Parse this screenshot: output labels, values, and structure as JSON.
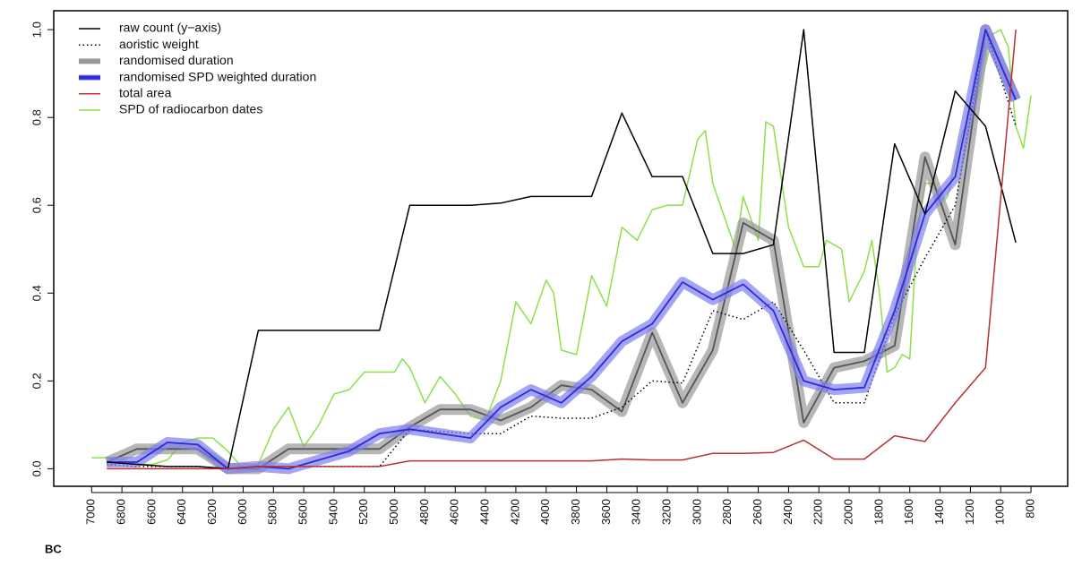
{
  "chart_data": {
    "type": "line",
    "xlabel": "BC",
    "xlim": [
      7250,
      558
    ],
    "ylim": [
      -0.04,
      1.043
    ],
    "xticks": [
      7000,
      6800,
      6600,
      6400,
      6200,
      6000,
      5800,
      5600,
      5400,
      5200,
      5000,
      4800,
      4600,
      4400,
      4200,
      4000,
      3800,
      3600,
      3400,
      3200,
      3000,
      2800,
      2600,
      2400,
      2200,
      2000,
      1800,
      1600,
      1400,
      1200,
      1000,
      800
    ],
    "yticks": [
      {
        "value": 0,
        "label": "0.0"
      },
      0.2,
      0.4,
      0.6,
      0.8,
      {
        "value": 1,
        "label": "1.0"
      }
    ],
    "legend": "top-left",
    "series": [
      {
        "name": "raw count (y−axis)",
        "color": "#000000",
        "x": [
          6900,
          6700,
          6500,
          6300,
          6100,
          5900,
          5700,
          5500,
          5300,
          5100,
          4900,
          4700,
          4500,
          4300,
          4100,
          3900,
          3700,
          3500,
          3300,
          3100,
          2900,
          2700,
          2500,
          2300,
          2100,
          1900,
          1700,
          1500,
          1300,
          1100,
          900
        ],
        "values": [
          0.015,
          0.01,
          0.005,
          0.005,
          0.0,
          0.315,
          0.315,
          0.315,
          0.315,
          0.315,
          0.6,
          0.6,
          0.6,
          0.605,
          0.62,
          0.62,
          0.62,
          0.81,
          0.665,
          0.665,
          0.49,
          0.49,
          0.51,
          1.0,
          0.265,
          0.265,
          0.74,
          0.58,
          0.86,
          0.78,
          0.515
        ]
      },
      {
        "name": "aoristic weight",
        "color": "#000000",
        "dash": "dotted",
        "x": [
          6900,
          6700,
          6500,
          6300,
          6100,
          5900,
          5700,
          5500,
          5300,
          5100,
          4900,
          4700,
          4500,
          4300,
          4100,
          3900,
          3700,
          3500,
          3300,
          3100,
          2900,
          2700,
          2500,
          2300,
          2100,
          1900,
          1700,
          1500,
          1300,
          1100,
          900
        ],
        "values": [
          0.01,
          0.005,
          0.005,
          0.005,
          0.0,
          0.005,
          0.005,
          0.005,
          0.005,
          0.005,
          0.09,
          0.085,
          0.08,
          0.08,
          0.12,
          0.115,
          0.115,
          0.14,
          0.2,
          0.195,
          0.36,
          0.34,
          0.38,
          0.27,
          0.15,
          0.15,
          0.35,
          0.48,
          0.6,
          1.0,
          0.78
        ]
      },
      {
        "name": "randomised duration",
        "color": "#555555",
        "band": "#999999",
        "x": [
          6900,
          6700,
          6500,
          6300,
          6100,
          5900,
          5700,
          5500,
          5300,
          5100,
          4900,
          4700,
          4500,
          4300,
          4100,
          3900,
          3700,
          3500,
          3300,
          3100,
          2900,
          2700,
          2500,
          2300,
          2100,
          1900,
          1700,
          1500,
          1300,
          1100,
          900
        ],
        "values": [
          0.015,
          0.045,
          0.045,
          0.045,
          0.0,
          0.0,
          0.045,
          0.045,
          0.045,
          0.045,
          0.095,
          0.135,
          0.135,
          0.11,
          0.14,
          0.19,
          0.18,
          0.13,
          0.31,
          0.15,
          0.27,
          0.56,
          0.52,
          0.105,
          0.23,
          0.245,
          0.28,
          0.71,
          0.51,
          1.0,
          0.84
        ]
      },
      {
        "name": "randomised SPD weighted duration",
        "color": "#2b2bd9",
        "band": "#7f7ff0",
        "x": [
          6900,
          6700,
          6500,
          6300,
          6100,
          5900,
          5700,
          5500,
          5300,
          5100,
          4900,
          4700,
          4500,
          4300,
          4100,
          3900,
          3700,
          3500,
          3300,
          3100,
          2900,
          2700,
          2500,
          2300,
          2100,
          1900,
          1700,
          1500,
          1300,
          1100,
          900
        ],
        "values": [
          0.015,
          0.015,
          0.06,
          0.055,
          0.0,
          0.005,
          0.0,
          0.02,
          0.04,
          0.08,
          0.09,
          0.08,
          0.07,
          0.14,
          0.18,
          0.15,
          0.21,
          0.29,
          0.33,
          0.425,
          0.385,
          0.42,
          0.36,
          0.2,
          0.18,
          0.185,
          0.36,
          0.58,
          0.665,
          1.0,
          0.84
        ]
      },
      {
        "name": "total area",
        "color": "#b8312f",
        "x": [
          6900,
          6700,
          6500,
          6300,
          6100,
          5900,
          5700,
          5500,
          5300,
          5100,
          4900,
          4700,
          4500,
          4300,
          4100,
          3900,
          3700,
          3500,
          3300,
          3100,
          2900,
          2700,
          2500,
          2300,
          2100,
          1900,
          1700,
          1500,
          1300,
          1100,
          900
        ],
        "values": [
          0.0,
          0.0,
          0.0,
          0.0,
          0.0,
          0.005,
          0.005,
          0.005,
          0.005,
          0.005,
          0.018,
          0.018,
          0.018,
          0.018,
          0.018,
          0.018,
          0.018,
          0.022,
          0.02,
          0.02,
          0.035,
          0.035,
          0.037,
          0.065,
          0.022,
          0.022,
          0.075,
          0.062,
          0.15,
          0.23,
          1.0
        ]
      },
      {
        "name": "SPD of radiocarbon dates",
        "color": "#8ee04a",
        "x": [
          7000,
          6900,
          6800,
          6700,
          6600,
          6500,
          6400,
          6300,
          6200,
          6100,
          6000,
          5900,
          5800,
          5700,
          5600,
          5500,
          5400,
          5300,
          5200,
          5100,
          5000,
          4950,
          4900,
          4800,
          4700,
          4600,
          4500,
          4400,
          4300,
          4200,
          4100,
          4000,
          3950,
          3900,
          3800,
          3750,
          3700,
          3600,
          3500,
          3400,
          3300,
          3200,
          3100,
          3000,
          2950,
          2900,
          2800,
          2750,
          2700,
          2600,
          2550,
          2500,
          2400,
          2300,
          2200,
          2150,
          2050,
          2000,
          1900,
          1850,
          1800,
          1750,
          1700,
          1650,
          1600,
          1550,
          1500,
          1450,
          1400,
          1350,
          1300,
          1250,
          1200,
          1100,
          1050,
          1000,
          950,
          900,
          850,
          800
        ],
        "values": [
          0.025,
          0.025,
          0.02,
          0.01,
          0.01,
          0.02,
          0.06,
          0.07,
          0.07,
          0.04,
          0.0,
          0.01,
          0.09,
          0.14,
          0.05,
          0.1,
          0.17,
          0.18,
          0.22,
          0.22,
          0.22,
          0.25,
          0.23,
          0.15,
          0.21,
          0.17,
          0.12,
          0.11,
          0.2,
          0.38,
          0.33,
          0.43,
          0.4,
          0.27,
          0.26,
          0.35,
          0.44,
          0.37,
          0.55,
          0.52,
          0.59,
          0.6,
          0.6,
          0.75,
          0.77,
          0.65,
          0.55,
          0.5,
          0.62,
          0.52,
          0.79,
          0.78,
          0.55,
          0.46,
          0.46,
          0.52,
          0.5,
          0.38,
          0.45,
          0.52,
          0.4,
          0.22,
          0.23,
          0.26,
          0.25,
          0.55,
          0.65,
          0.65,
          0.6,
          0.62,
          0.7,
          0.77,
          0.78,
          0.92,
          0.99,
          1.0,
          0.96,
          0.78,
          0.73,
          0.85
        ]
      }
    ]
  }
}
